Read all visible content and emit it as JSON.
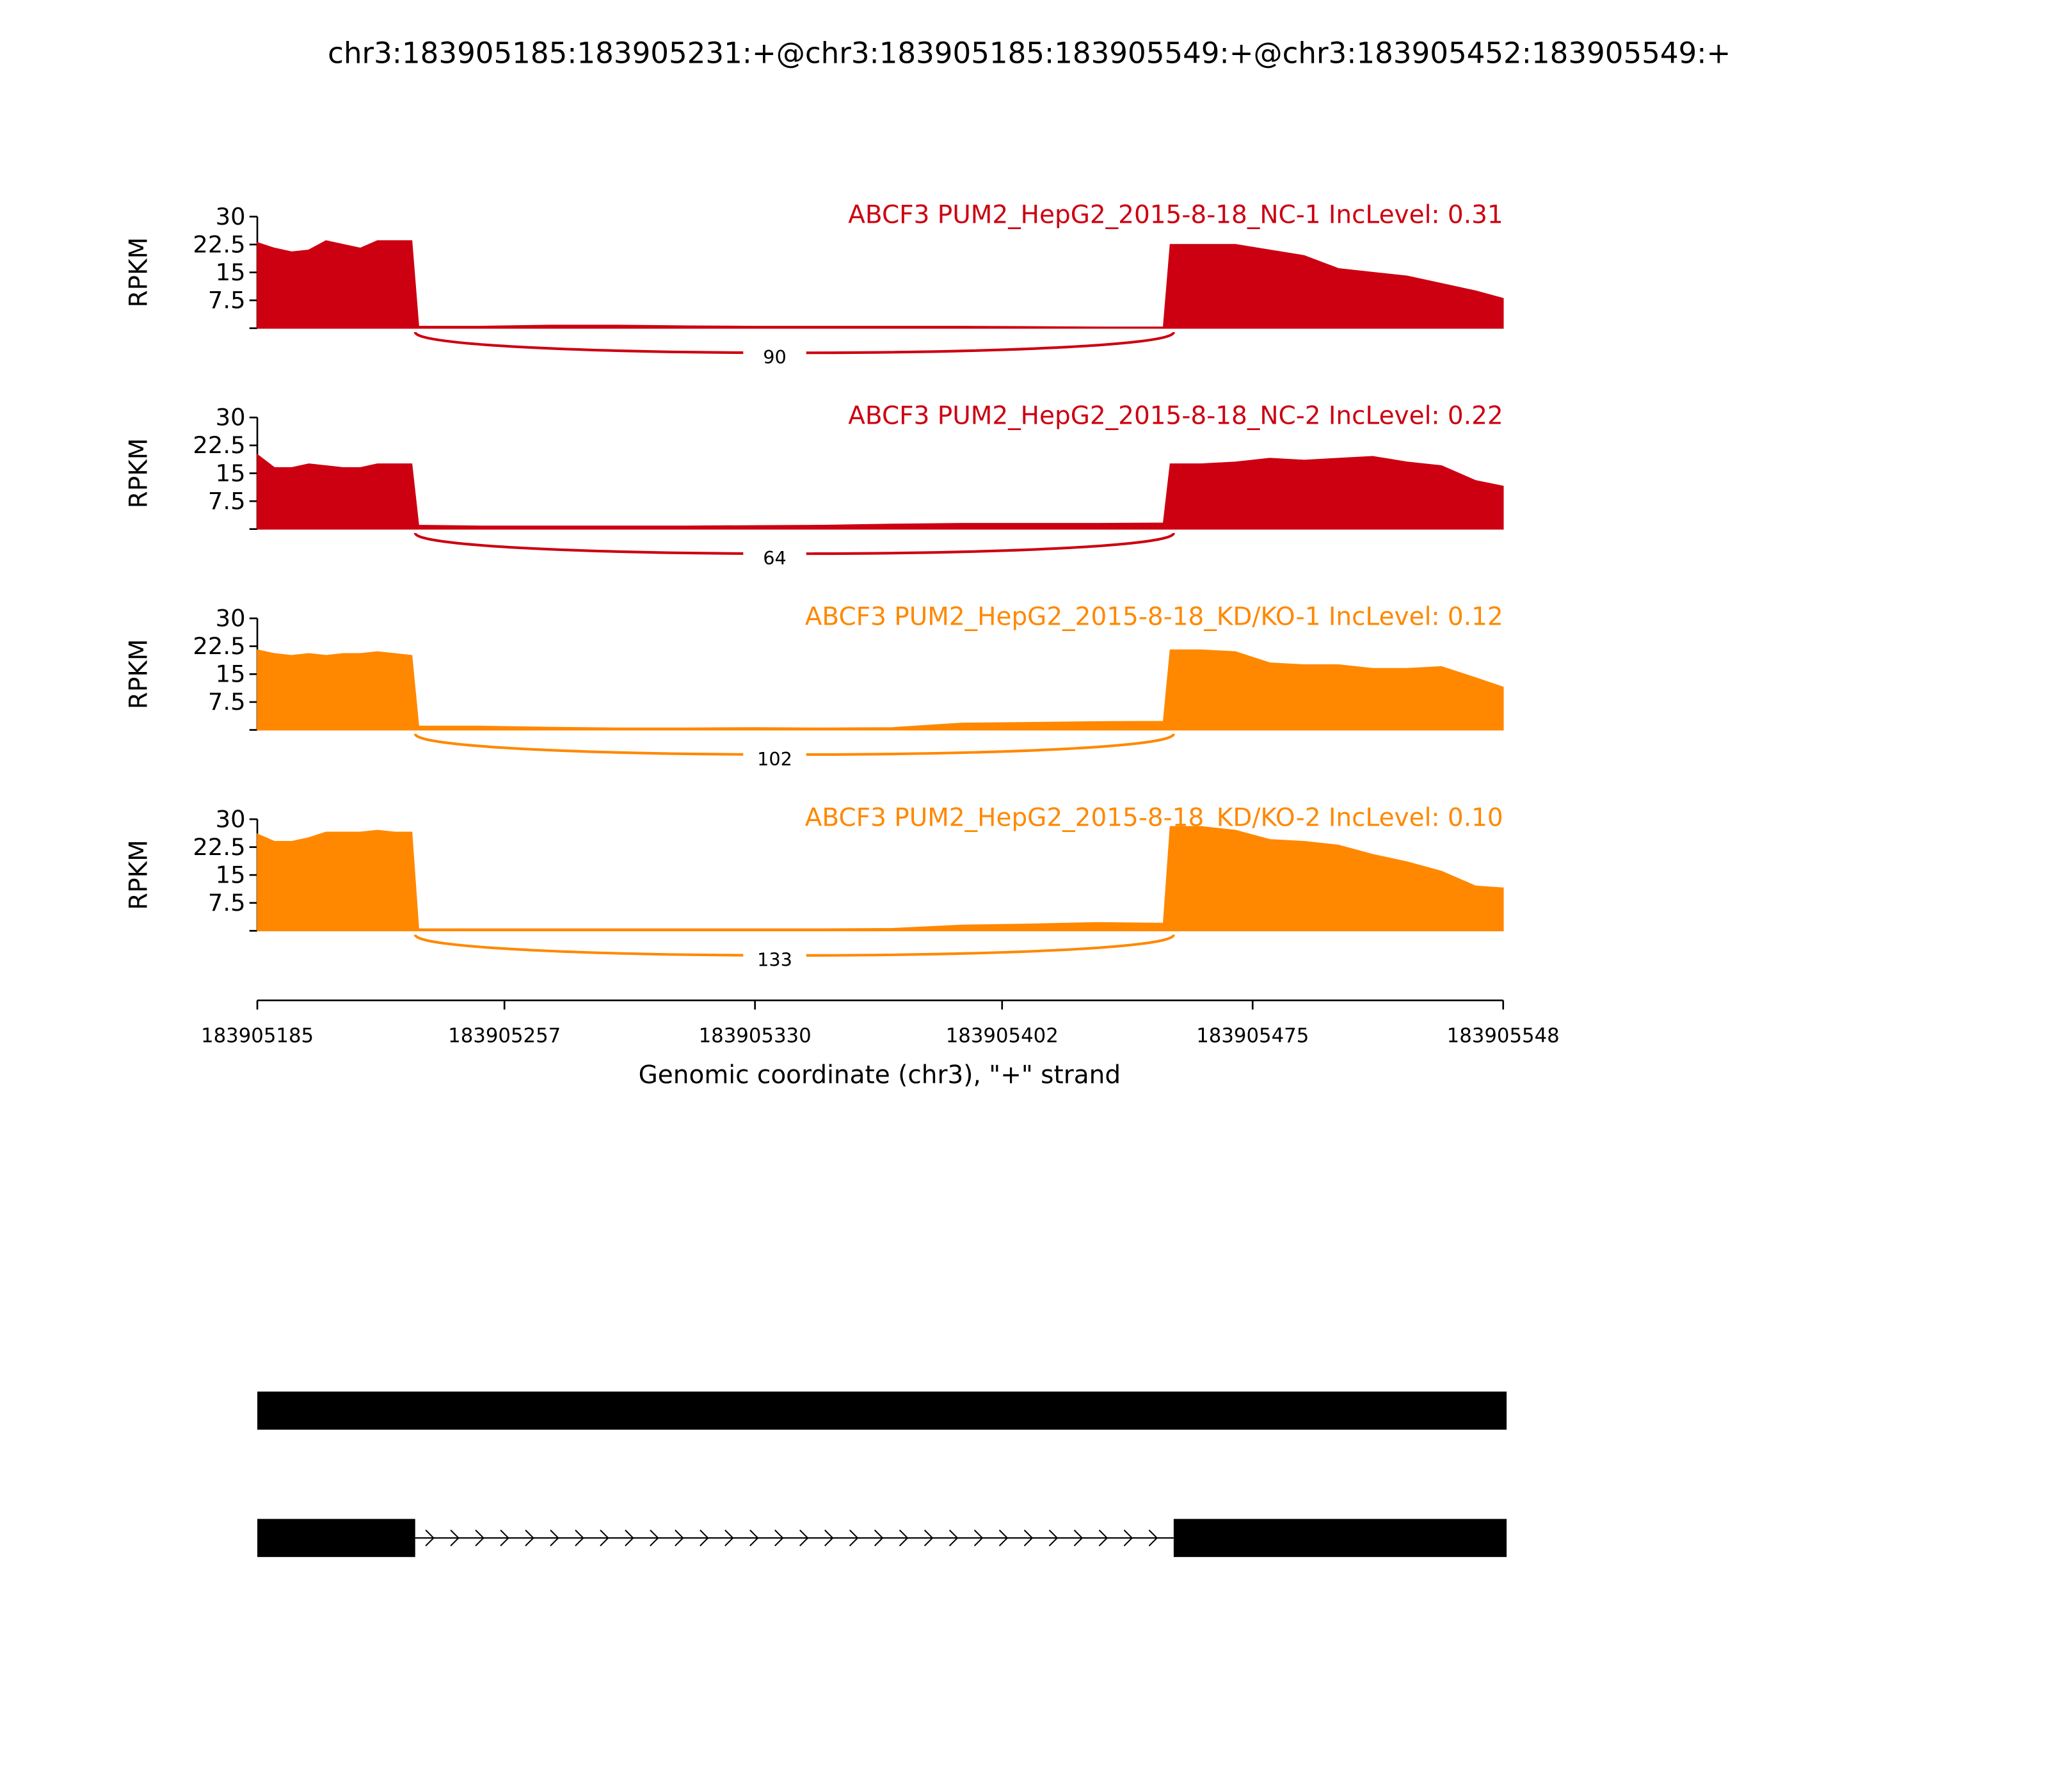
{
  "chart_data": {
    "type": "area",
    "title": "chr3:183905185:183905231:+@chr3:183905185:183905549:+@chr3:183905452:183905549:+",
    "xlabel": "Genomic coordinate (chr3), \"+\" strand",
    "ylabel": "RPKM",
    "xlim": [
      183905185,
      183905548
    ],
    "xticks": [
      183905185,
      183905257,
      183905330,
      183905402,
      183905475,
      183905548
    ],
    "ylim": [
      0,
      30
    ],
    "yticks": [
      7.5,
      15,
      22.5,
      30
    ],
    "x": [
      183905185,
      183905190,
      183905195,
      183905200,
      183905205,
      183905210,
      183905215,
      183905220,
      183905225,
      183905230,
      183905232,
      183905250,
      183905270,
      183905290,
      183905310,
      183905330,
      183905350,
      183905370,
      183905390,
      183905410,
      183905430,
      183905449,
      183905451,
      183905460,
      183905470,
      183905480,
      183905490,
      183905500,
      183905510,
      183905520,
      183905530,
      183905540,
      183905548
    ],
    "series": [
      {
        "name": "ABCF3 PUM2_HepG2_2015-8-18_NC-1 IncLevel: 0.31",
        "color": "#cc0011",
        "junction_reads": 90,
        "values": [
          23,
          21.5,
          20.5,
          21,
          23.5,
          22.5,
          21.5,
          23.5,
          23.5,
          23.5,
          0.5,
          0.5,
          0.8,
          0.8,
          0.6,
          0.5,
          0.5,
          0.5,
          0.5,
          0.4,
          0.3,
          0.3,
          22.5,
          22.5,
          22.5,
          21,
          19.5,
          16,
          15,
          14,
          12,
          10,
          8
        ]
      },
      {
        "name": "ABCF3 PUM2_HepG2_2015-8-18_NC-2 IncLevel: 0.22",
        "color": "#cc0011",
        "junction_reads": 64,
        "values": [
          20,
          16.5,
          16.5,
          17.5,
          17,
          16.5,
          16.5,
          17.5,
          17.5,
          17.5,
          1,
          0.8,
          0.8,
          0.8,
          0.8,
          0.9,
          1,
          1.3,
          1.5,
          1.5,
          1.5,
          1.6,
          17.5,
          17.5,
          18,
          19,
          18.5,
          19,
          19.5,
          18,
          17,
          13,
          11.5
        ]
      },
      {
        "name": "ABCF3 PUM2_HepG2_2015-8-18_KD/KO-1 IncLevel: 0.12",
        "color": "#ff8800",
        "junction_reads": 102,
        "values": [
          21.5,
          20.5,
          20,
          20.5,
          20,
          20.5,
          20.5,
          21,
          20.5,
          20,
          1,
          1,
          0.7,
          0.5,
          0.5,
          0.6,
          0.5,
          0.6,
          1.8,
          2,
          2.2,
          2.3,
          21.5,
          21.5,
          21,
          18,
          17.5,
          17.5,
          16.5,
          16.5,
          17,
          14,
          11.5
        ]
      },
      {
        "name": "ABCF3 PUM2_HepG2_2015-8-18_KD/KO-2 IncLevel: 0.10",
        "color": "#ff8800",
        "junction_reads": 133,
        "values": [
          26,
          24,
          24,
          25,
          26.5,
          26.5,
          26.5,
          27,
          26.5,
          26.5,
          0.5,
          0.5,
          0.5,
          0.5,
          0.5,
          0.5,
          0.5,
          0.6,
          1.5,
          1.8,
          2.2,
          2,
          28,
          28,
          27,
          24.5,
          24,
          23,
          20.5,
          18.5,
          16,
          12,
          11.5
        ]
      }
    ],
    "junction": [
      183905231,
      183905452
    ],
    "transcripts": [
      {
        "exons": [
          [
            183905185,
            183905549
          ]
        ]
      },
      {
        "exons": [
          [
            183905185,
            183905231
          ],
          [
            183905452,
            183905549
          ]
        ]
      }
    ]
  }
}
